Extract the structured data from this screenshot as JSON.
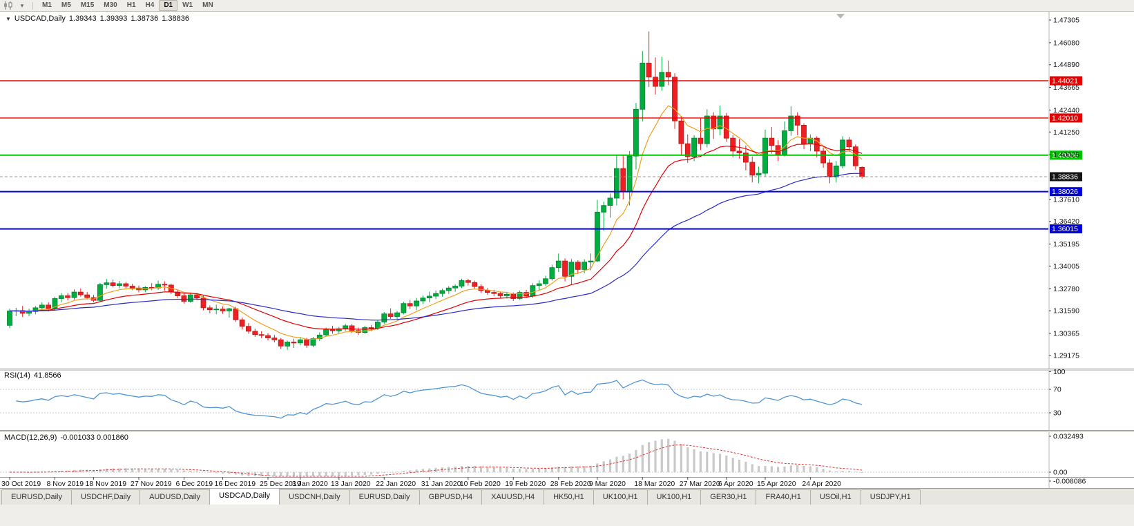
{
  "toolbar": {
    "timeframes": [
      "M1",
      "M5",
      "M15",
      "M30",
      "H1",
      "H4",
      "D1",
      "W1",
      "MN"
    ],
    "active_timeframe": "D1",
    "icons": [
      "candlestick-chart-icon",
      "chart-dropdown-caret-icon"
    ]
  },
  "main_chart": {
    "symbol_period": "USDCAD,Daily",
    "open": "1.39343",
    "high": "1.39393",
    "low": "1.38736",
    "close": "1.38836"
  },
  "rsi": {
    "label": "RSI(14)",
    "value": "41.8566"
  },
  "macd": {
    "label": "MACD(12,26,9)",
    "values": "-0.001033 0.001860"
  },
  "tabs": [
    {
      "label": "EURUSD,Daily",
      "active": false
    },
    {
      "label": "USDCHF,Daily",
      "active": false
    },
    {
      "label": "AUDUSD,Daily",
      "active": false
    },
    {
      "label": "USDCAD,Daily",
      "active": true
    },
    {
      "label": "USDCNH,Daily",
      "active": false
    },
    {
      "label": "EURUSD,Daily",
      "active": false
    },
    {
      "label": "GBPUSD,H4",
      "active": false
    },
    {
      "label": "XAUUSD,H4",
      "active": false
    },
    {
      "label": "HK50,H1",
      "active": false
    },
    {
      "label": "UK100,H1",
      "active": false
    },
    {
      "label": "UK100,H1",
      "active": false
    },
    {
      "label": "GER30,H1",
      "active": false
    },
    {
      "label": "FRA40,H1",
      "active": false
    },
    {
      "label": "USOil,H1",
      "active": false
    },
    {
      "label": "USDJPY,H1",
      "active": false
    }
  ],
  "chart_data": {
    "type": "candlestick",
    "symbol": "USDCAD",
    "timeframe": "Daily",
    "current_bar": {
      "open": 1.39343,
      "high": 1.39393,
      "low": 1.38736,
      "close": 1.38836
    },
    "current_price": 1.38836,
    "price_axis": {
      "ticks": [
        1.47305,
        1.4608,
        1.4489,
        1.43665,
        1.4244,
        1.4125,
        1.40025,
        1.3761,
        1.3642,
        1.35195,
        1.34005,
        1.3278,
        1.3159,
        1.30365,
        1.29175
      ]
    },
    "levels": [
      {
        "price": 1.44021,
        "color": "#e60000",
        "width": 1.4
      },
      {
        "price": 1.4201,
        "color": "#e60000",
        "width": 1.4
      },
      {
        "price": 1.4,
        "color": "#00c200",
        "width": 2
      },
      {
        "price": 1.38026,
        "color": "#0000dd",
        "width": 2
      },
      {
        "price": 1.36015,
        "color": "#0000dd",
        "width": 2
      }
    ],
    "moving_averages": [
      {
        "name": "fast",
        "period": 8,
        "color": "#ef9f1f"
      },
      {
        "name": "mid",
        "period": 20,
        "color": "#e00000"
      },
      {
        "name": "slow",
        "period": 50,
        "color": "#2929c8"
      }
    ],
    "rsi": {
      "period": 14,
      "last": 41.8566,
      "levels": [
        70,
        30
      ],
      "axis_labels": [
        100,
        70,
        30
      ],
      "color": "#4f94d4"
    },
    "macd": {
      "fast": 12,
      "slow": 26,
      "signal": 9,
      "last": -0.001033,
      "last_signal": 0.00186,
      "scale_max": 0.032493,
      "scale_min": -0.008086,
      "histogram_color": "#c9c9c9",
      "signal_color": "#e03030"
    },
    "colors": {
      "up": "#00ad3f",
      "down": "#ed1f24",
      "up_border": "#067d34",
      "down_border": "#b51c14"
    },
    "time_labels": [
      {
        "text": "30 Oct 2019",
        "i": 0
      },
      {
        "text": "8 Nov 2019",
        "i": 7
      },
      {
        "text": "18 Nov 2019",
        "i": 13
      },
      {
        "text": "27 Nov 2019",
        "i": 20
      },
      {
        "text": "6 Dec 2019",
        "i": 27
      },
      {
        "text": "16 Dec 2019",
        "i": 33
      },
      {
        "text": "25 Dec 2019",
        "i": 40
      },
      {
        "text": "3 Jan 2020",
        "i": 45
      },
      {
        "text": "13 Jan 2020",
        "i": 51
      },
      {
        "text": "22 Jan 2020",
        "i": 58
      },
      {
        "text": "31 Jan 2020",
        "i": 65
      },
      {
        "text": "10 Feb 2020",
        "i": 71
      },
      {
        "text": "19 Feb 2020",
        "i": 78
      },
      {
        "text": "28 Feb 2020",
        "i": 85
      },
      {
        "text": "9 Mar 2020",
        "i": 91
      },
      {
        "text": "18 Mar 2020",
        "i": 98
      },
      {
        "text": "27 Mar 2020",
        "i": 105
      },
      {
        "text": "6 Apr 2020",
        "i": 111
      },
      {
        "text": "15 Apr 2020",
        "i": 117
      },
      {
        "text": "24 Apr 2020",
        "i": 124
      }
    ],
    "candles": [
      [
        1.308,
        1.317,
        1.3065,
        1.3158
      ],
      [
        1.3158,
        1.3175,
        1.313,
        1.316
      ],
      [
        1.316,
        1.3185,
        1.3125,
        1.3145
      ],
      [
        1.3145,
        1.317,
        1.313,
        1.3155
      ],
      [
        1.3155,
        1.3185,
        1.314,
        1.3175
      ],
      [
        1.3175,
        1.3205,
        1.316,
        1.319
      ],
      [
        1.319,
        1.3205,
        1.3155,
        1.317
      ],
      [
        1.317,
        1.3235,
        1.316,
        1.3225
      ],
      [
        1.3225,
        1.3255,
        1.3205,
        1.324
      ],
      [
        1.324,
        1.3255,
        1.3215,
        1.323
      ],
      [
        1.323,
        1.3275,
        1.3218,
        1.326
      ],
      [
        1.326,
        1.328,
        1.3235,
        1.3245
      ],
      [
        1.3245,
        1.326,
        1.322,
        1.323
      ],
      [
        1.323,
        1.3245,
        1.3205,
        1.3215
      ],
      [
        1.3215,
        1.331,
        1.3208,
        1.33
      ],
      [
        1.33,
        1.333,
        1.3278,
        1.331
      ],
      [
        1.331,
        1.3328,
        1.3285,
        1.3295
      ],
      [
        1.3295,
        1.332,
        1.328,
        1.3305
      ],
      [
        1.3305,
        1.3315,
        1.3282,
        1.3292
      ],
      [
        1.3292,
        1.3305,
        1.327,
        1.3282
      ],
      [
        1.3282,
        1.3295,
        1.3258,
        1.3272
      ],
      [
        1.3272,
        1.3292,
        1.326,
        1.3285
      ],
      [
        1.3285,
        1.3308,
        1.327,
        1.3282
      ],
      [
        1.3282,
        1.3322,
        1.3272,
        1.3302
      ],
      [
        1.3302,
        1.3318,
        1.3268,
        1.3298
      ],
      [
        1.3298,
        1.3305,
        1.3248,
        1.326
      ],
      [
        1.326,
        1.3272,
        1.3228,
        1.324
      ],
      [
        1.324,
        1.3252,
        1.3198,
        1.321
      ],
      [
        1.321,
        1.3258,
        1.3202,
        1.3245
      ],
      [
        1.3245,
        1.3256,
        1.3215,
        1.3228
      ],
      [
        1.3228,
        1.324,
        1.3162,
        1.3175
      ],
      [
        1.3175,
        1.3188,
        1.3145,
        1.3165
      ],
      [
        1.3165,
        1.3192,
        1.314,
        1.3168
      ],
      [
        1.3168,
        1.3182,
        1.3142,
        1.3158
      ],
      [
        1.3158,
        1.3175,
        1.3122,
        1.317
      ],
      [
        1.317,
        1.318,
        1.3098,
        1.311
      ],
      [
        1.311,
        1.3122,
        1.3058,
        1.3075
      ],
      [
        1.3075,
        1.3092,
        1.3035,
        1.3048
      ],
      [
        1.3048,
        1.3062,
        1.3018,
        1.303
      ],
      [
        1.303,
        1.3048,
        1.3012,
        1.3025
      ],
      [
        1.3025,
        1.3038,
        1.2998,
        1.3012
      ],
      [
        1.3012,
        1.3028,
        1.2988,
        1.3002
      ],
      [
        1.3002,
        1.3012,
        1.2952,
        1.2968
      ],
      [
        1.2968,
        1.2998,
        1.2948,
        1.299
      ],
      [
        1.299,
        1.3008,
        1.2958,
        1.2985
      ],
      [
        1.2985,
        1.3018,
        1.2972,
        1.3002
      ],
      [
        1.3002,
        1.3012,
        1.2958,
        1.2972
      ],
      [
        1.2972,
        1.3018,
        1.2962,
        1.3008
      ],
      [
        1.3008,
        1.3042,
        1.2995,
        1.3028
      ],
      [
        1.3028,
        1.3068,
        1.302,
        1.3058
      ],
      [
        1.3058,
        1.3078,
        1.3035,
        1.305
      ],
      [
        1.305,
        1.3072,
        1.3035,
        1.3062
      ],
      [
        1.3062,
        1.3088,
        1.305,
        1.3078
      ],
      [
        1.3078,
        1.3088,
        1.304,
        1.3052
      ],
      [
        1.3052,
        1.3068,
        1.3028,
        1.3042
      ],
      [
        1.3042,
        1.3078,
        1.3035,
        1.3068
      ],
      [
        1.3068,
        1.3082,
        1.3048,
        1.3065
      ],
      [
        1.3065,
        1.3108,
        1.3055,
        1.3098
      ],
      [
        1.3098,
        1.3152,
        1.3088,
        1.3142
      ],
      [
        1.3142,
        1.3172,
        1.3115,
        1.3128
      ],
      [
        1.3128,
        1.3158,
        1.311,
        1.3148
      ],
      [
        1.3148,
        1.3208,
        1.314,
        1.3198
      ],
      [
        1.3198,
        1.3218,
        1.3168,
        1.3185
      ],
      [
        1.3185,
        1.3228,
        1.3162,
        1.3212
      ],
      [
        1.3212,
        1.3242,
        1.3195,
        1.3228
      ],
      [
        1.3228,
        1.3262,
        1.3205,
        1.3238
      ],
      [
        1.3238,
        1.3268,
        1.3222,
        1.3252
      ],
      [
        1.3252,
        1.3278,
        1.3235,
        1.3268
      ],
      [
        1.3268,
        1.3292,
        1.325,
        1.3282
      ],
      [
        1.3282,
        1.3302,
        1.3262,
        1.3292
      ],
      [
        1.3292,
        1.3332,
        1.3282,
        1.3322
      ],
      [
        1.3322,
        1.3332,
        1.3295,
        1.3312
      ],
      [
        1.3312,
        1.3322,
        1.3278,
        1.329
      ],
      [
        1.329,
        1.3302,
        1.3255,
        1.3268
      ],
      [
        1.3268,
        1.3282,
        1.3245,
        1.3258
      ],
      [
        1.3258,
        1.3272,
        1.3238,
        1.3252
      ],
      [
        1.3252,
        1.3262,
        1.3228,
        1.324
      ],
      [
        1.324,
        1.3262,
        1.3225,
        1.3248
      ],
      [
        1.3248,
        1.3258,
        1.3212,
        1.3225
      ],
      [
        1.3225,
        1.3268,
        1.3218,
        1.3258
      ],
      [
        1.3258,
        1.3272,
        1.3228,
        1.3238
      ],
      [
        1.3238,
        1.3308,
        1.3228,
        1.3295
      ],
      [
        1.3295,
        1.3325,
        1.3268,
        1.3305
      ],
      [
        1.3305,
        1.3348,
        1.3292,
        1.3332
      ],
      [
        1.3332,
        1.3408,
        1.3322,
        1.3392
      ],
      [
        1.3392,
        1.3468,
        1.3368,
        1.3428
      ],
      [
        1.3428,
        1.3442,
        1.3318,
        1.3345
      ],
      [
        1.3345,
        1.3438,
        1.3302,
        1.3422
      ],
      [
        1.3422,
        1.3432,
        1.3358,
        1.3382
      ],
      [
        1.3382,
        1.3438,
        1.3362,
        1.3422
      ],
      [
        1.3422,
        1.3468,
        1.3378,
        1.3428
      ],
      [
        1.3428,
        1.3758,
        1.3422,
        1.3692
      ],
      [
        1.3692,
        1.3748,
        1.3592,
        1.3728
      ],
      [
        1.3728,
        1.3792,
        1.3662,
        1.3768
      ],
      [
        1.3768,
        1.3998,
        1.3728,
        1.3928
      ],
      [
        1.3928,
        1.3998,
        1.3762,
        1.3802
      ],
      [
        1.3802,
        1.4022,
        1.3728,
        1.3995
      ],
      [
        1.3995,
        1.4282,
        1.3922,
        1.4248
      ],
      [
        1.4248,
        1.4562,
        1.4182,
        1.4498
      ],
      [
        1.4498,
        1.4669,
        1.4368,
        1.4422
      ],
      [
        1.4422,
        1.4528,
        1.4328,
        1.4372
      ],
      [
        1.4372,
        1.4532,
        1.4348,
        1.4448
      ],
      [
        1.4448,
        1.4512,
        1.4378,
        1.4422
      ],
      [
        1.4422,
        1.4442,
        1.4142,
        1.4185
      ],
      [
        1.4185,
        1.4212,
        1.4002,
        1.4062
      ],
      [
        1.4062,
        1.4112,
        1.3958,
        1.3992
      ],
      [
        1.3992,
        1.4108,
        1.3968,
        1.4092
      ],
      [
        1.4092,
        1.4202,
        1.4028,
        1.4062
      ],
      [
        1.4062,
        1.4248,
        1.4042,
        1.4212
      ],
      [
        1.4212,
        1.4232,
        1.4088,
        1.4142
      ],
      [
        1.4142,
        1.4268,
        1.4108,
        1.4212
      ],
      [
        1.4212,
        1.4228,
        1.4072,
        1.4092
      ],
      [
        1.4092,
        1.4108,
        1.3988,
        1.4022
      ],
      [
        1.4022,
        1.4088,
        1.3982,
        1.4012
      ],
      [
        1.4012,
        1.4052,
        1.3918,
        1.3962
      ],
      [
        1.3962,
        1.3992,
        1.3852,
        1.3892
      ],
      [
        1.3892,
        1.3938,
        1.3848,
        1.3902
      ],
      [
        1.3902,
        1.4138,
        1.3882,
        1.4092
      ],
      [
        1.4092,
        1.4152,
        1.4008,
        1.4052
      ],
      [
        1.4052,
        1.4082,
        1.3968,
        1.4002
      ],
      [
        1.4002,
        1.4182,
        1.3992,
        1.4132
      ],
      [
        1.4132,
        1.4265,
        1.4105,
        1.4212
      ],
      [
        1.4212,
        1.4232,
        1.4108,
        1.4162
      ],
      [
        1.4162,
        1.4172,
        1.4032,
        1.4062
      ],
      [
        1.4062,
        1.4112,
        1.4022,
        1.4092
      ],
      [
        1.4092,
        1.4102,
        1.3988,
        1.4022
      ],
      [
        1.4022,
        1.4042,
        1.3932,
        1.3958
      ],
      [
        1.3958,
        1.3978,
        1.3848,
        1.3882
      ],
      [
        1.3882,
        1.3968,
        1.3852,
        1.3942
      ],
      [
        1.3942,
        1.4102,
        1.3928,
        1.4082
      ],
      [
        1.4082,
        1.4098,
        1.4018,
        1.4045
      ],
      [
        1.4045,
        1.4058,
        1.3922,
        1.3942
      ],
      [
        1.39343,
        1.39393,
        1.38736,
        1.38836
      ]
    ]
  }
}
